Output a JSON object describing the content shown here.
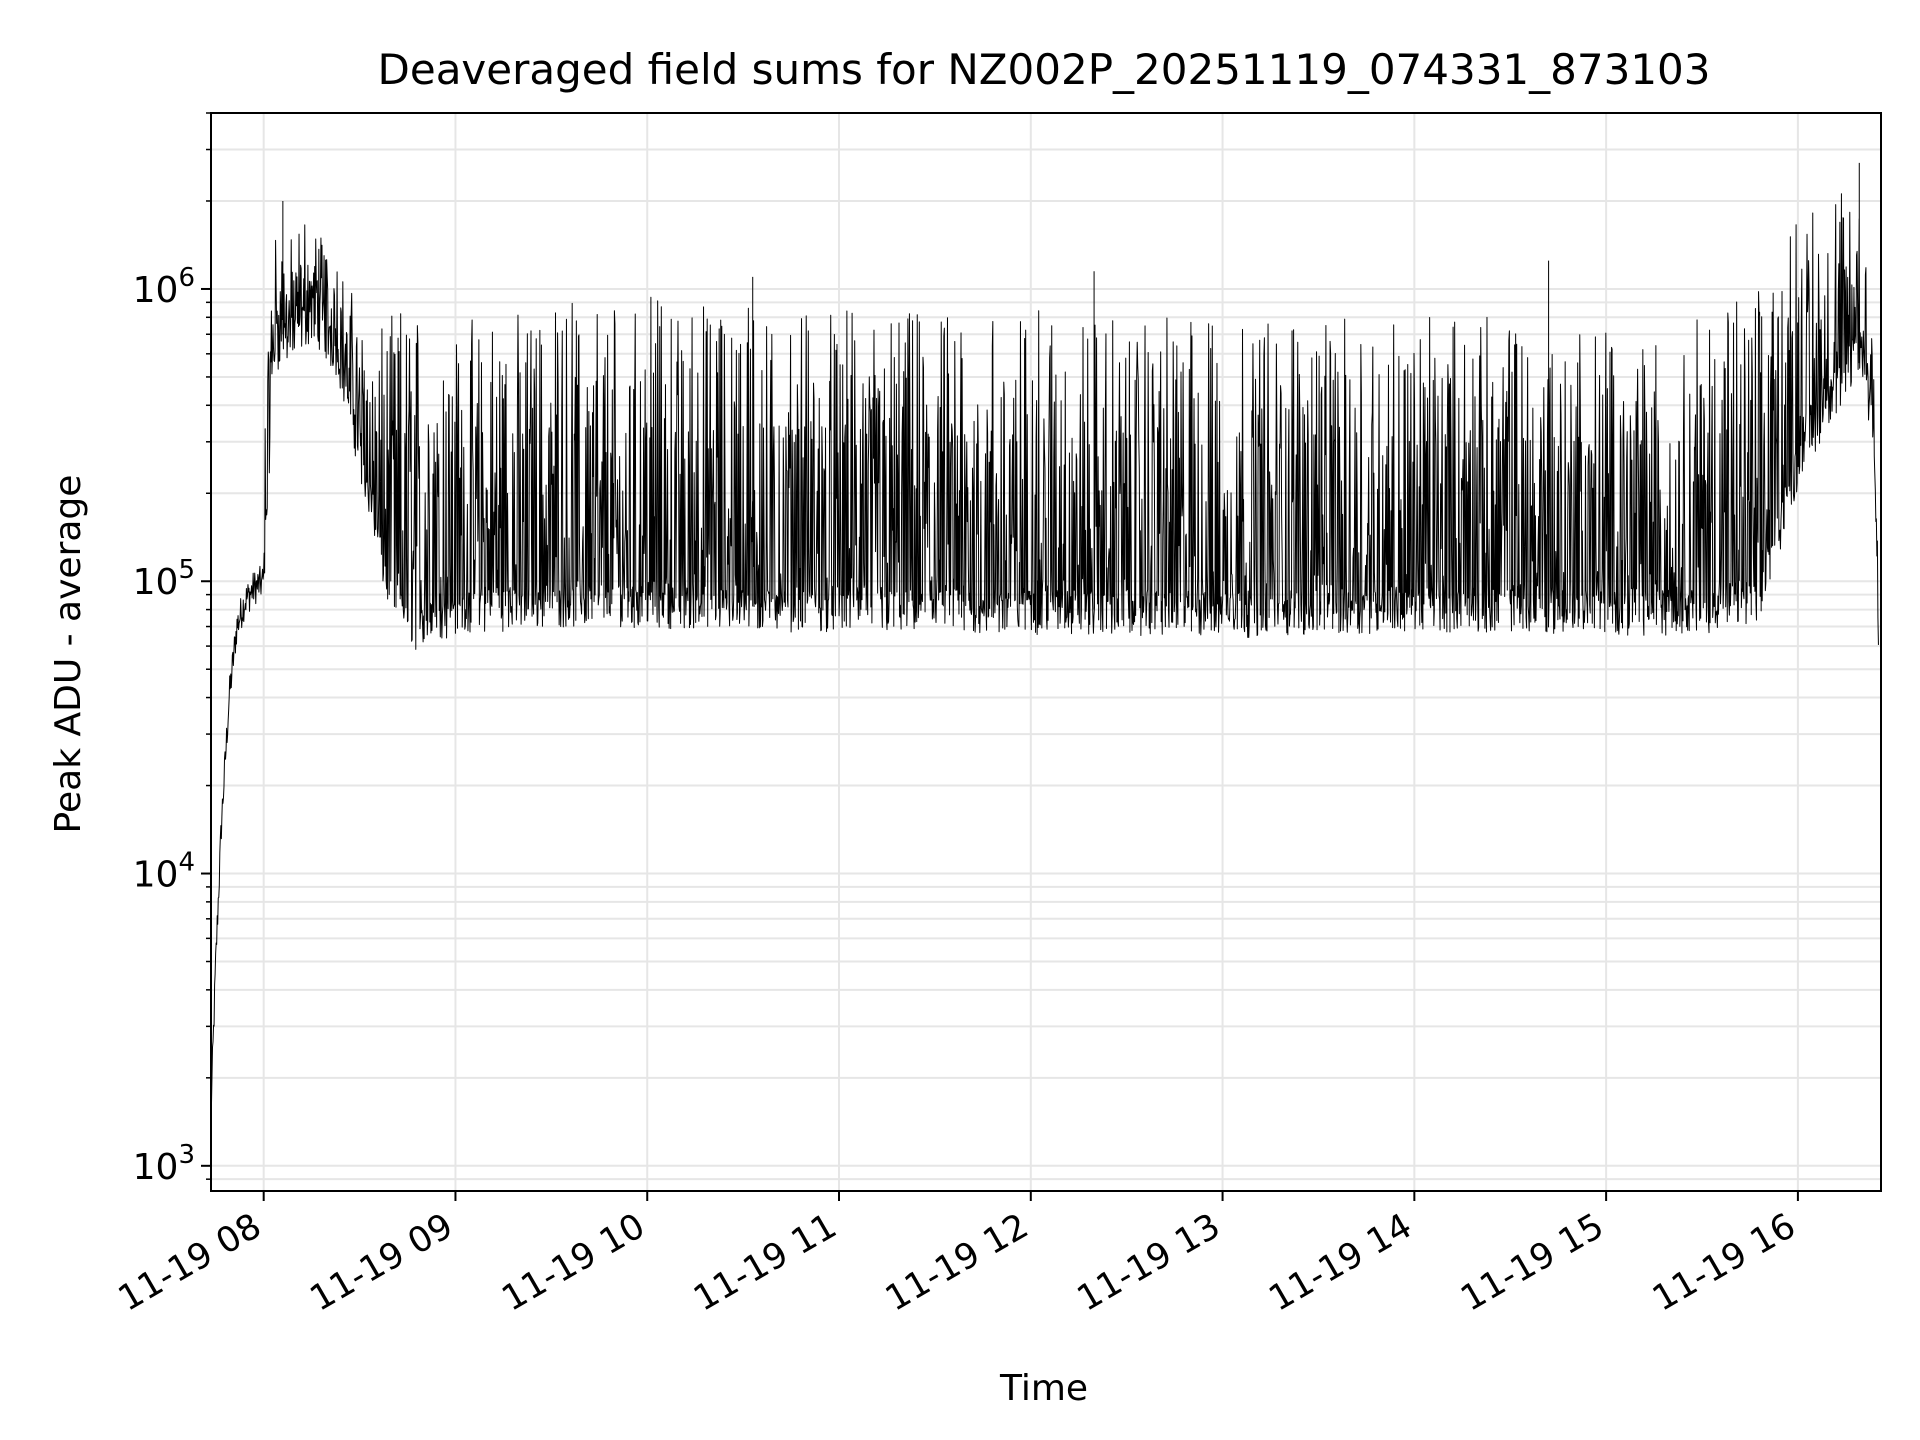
{
  "chart_data": {
    "type": "line",
    "title": "Deaveraged field sums for NZ002P_20251119_074331_873103",
    "xlabel": "Time",
    "ylabel": "Peak ADU - average",
    "yscale": "log",
    "ylim": [
      820,
      4000000
    ],
    "xlim": [
      "2025-11-19 07:43:31",
      "2025-11-19 16:26:00"
    ],
    "grid": true,
    "line_color": "#000000",
    "grid_color": "#e6e6e6",
    "x_ticks": [
      {
        "label": "11-19 08",
        "hour": 8
      },
      {
        "label": "11-19 09",
        "hour": 9
      },
      {
        "label": "11-19 10",
        "hour": 10
      },
      {
        "label": "11-19 11",
        "hour": 11
      },
      {
        "label": "11-19 12",
        "hour": 12
      },
      {
        "label": "11-19 13",
        "hour": 13
      },
      {
        "label": "11-19 14",
        "hour": 14
      },
      {
        "label": "11-19 15",
        "hour": 15
      },
      {
        "label": "11-19 16",
        "hour": 16
      }
    ],
    "y_ticks": [
      {
        "base": "10",
        "exp": "3",
        "value": 1000
      },
      {
        "base": "10",
        "exp": "4",
        "value": 10000
      },
      {
        "base": "10",
        "exp": "5",
        "value": 100000
      },
      {
        "base": "10",
        "exp": "6",
        "value": 1000000
      }
    ],
    "series": [
      {
        "name": "Peak ADU - average",
        "x_hours": [
          7.725,
          7.75,
          7.78,
          7.82,
          7.86,
          7.9,
          7.95,
          8.0,
          8.05,
          8.1,
          8.15,
          8.2,
          8.25,
          8.3,
          8.35,
          8.4,
          8.45,
          8.5,
          8.55,
          8.6,
          8.65,
          8.7,
          8.8,
          8.9,
          9.0,
          9.5,
          10.0,
          10.5,
          11.0,
          11.5,
          12.0,
          12.5,
          13.0,
          13.5,
          14.0,
          14.5,
          15.0,
          15.5,
          15.8,
          15.9,
          16.0,
          16.1,
          16.2,
          16.3,
          16.35,
          16.4,
          16.42
        ],
        "baseline": [
          1500,
          5000,
          15000,
          40000,
          70000,
          85000,
          95000,
          100000,
          600000,
          700000,
          650000,
          750000,
          800000,
          750000,
          650000,
          550000,
          400000,
          280000,
          200000,
          130000,
          100000,
          85000,
          70000,
          75000,
          80000,
          85000,
          85000,
          82000,
          82000,
          80000,
          80000,
          80000,
          78000,
          80000,
          82000,
          82000,
          80000,
          80000,
          90000,
          150000,
          250000,
          350000,
          450000,
          600000,
          500000,
          300000,
          60000
        ],
        "peak_envelope": [
          1500,
          5500,
          18000,
          50000,
          90000,
          110000,
          120000,
          800000,
          1700000,
          1600000,
          1500000,
          1800000,
          1700000,
          1600000,
          1500000,
          1200000,
          1000000,
          900000,
          800000,
          700000,
          800000,
          900000,
          900000,
          850000,
          800000,
          900000,
          950000,
          900000,
          850000,
          850000,
          850000,
          800000,
          800000,
          800000,
          800000,
          850000,
          750000,
          800000,
          1000000,
          1400000,
          1800000,
          1900000,
          2000000,
          2500000,
          2200000,
          600000,
          100000
        ],
        "notable_peaks": [
          {
            "hour": 8.1,
            "value": 2000000
          },
          {
            "hour": 10.55,
            "value": 1100000
          },
          {
            "hour": 12.33,
            "value": 1150000
          },
          {
            "hour": 14.7,
            "value": 1250000
          },
          {
            "hour": 16.32,
            "value": 2700000
          }
        ],
        "minimum_level": 45000
      }
    ]
  }
}
